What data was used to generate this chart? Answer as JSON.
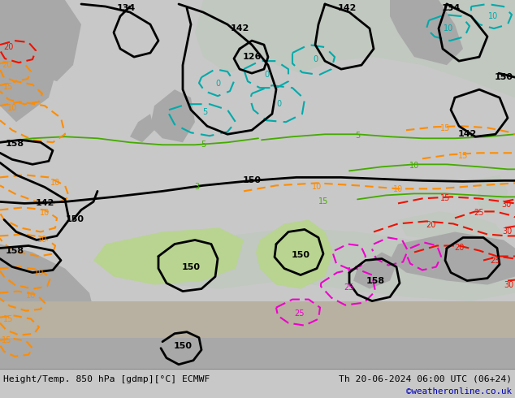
{
  "title_left": "Height/Temp. 850 hPa [gdmp][°C] ECMWF",
  "title_right": "Th 20-06-2024 06:00 UTC (06+24)",
  "watermark": "©weatheronline.co.uk",
  "bg_outer": "#c8c8c8",
  "bg_map_green": "#b8d490",
  "bg_map_gray": "#a8a8a8",
  "bg_map_light_gray": "#c0c0c0",
  "color_black": "#000000",
  "color_orange": "#ff8c00",
  "color_green": "#44aa00",
  "color_cyan": "#00aaaa",
  "color_magenta": "#ee00cc",
  "color_red": "#ee1100",
  "color_blue_link": "#0000bb",
  "figsize": [
    6.34,
    4.9
  ],
  "dpi": 100
}
